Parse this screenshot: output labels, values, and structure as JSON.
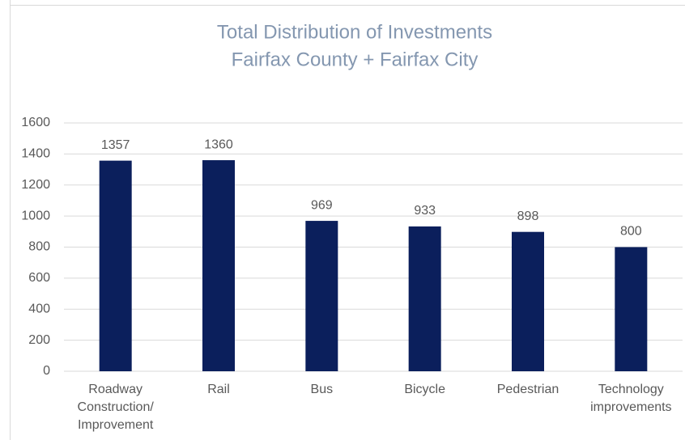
{
  "chart_data": {
    "type": "bar",
    "title": "Total Distribution of Investments",
    "subtitle": "Fairfax County + Fairfax City",
    "categories": [
      "Roadway Construction/ Improvement",
      "Rail",
      "Bus",
      "Bicycle",
      "Pedestrian",
      "Technology improvements"
    ],
    "values": [
      1357,
      1360,
      969,
      933,
      898,
      800
    ],
    "color": "#0b1f5c",
    "ylim": [
      0,
      1600
    ],
    "yticks": [
      0,
      200,
      400,
      600,
      800,
      1000,
      1200,
      1400,
      1600
    ],
    "grid": true
  }
}
